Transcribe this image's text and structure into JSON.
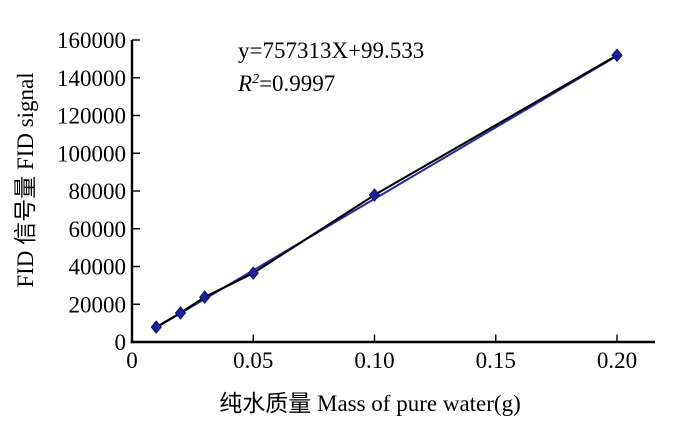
{
  "chart_data": {
    "type": "scatter",
    "title": "",
    "x": [
      0.01,
      0.02,
      0.03,
      0.05,
      0.1,
      0.2
    ],
    "y": [
      7900,
      15400,
      23800,
      36500,
      77900,
      151900
    ],
    "xlabel": "纯水质量  Mass of pure water(g)",
    "ylabel": "FID 信号量  FID signal",
    "xlim": [
      0,
      0.216
    ],
    "ylim": [
      0,
      160000
    ],
    "grid": "off",
    "legend": "none",
    "x_ticks": {
      "values": [
        0,
        0.05,
        0.1,
        0.15,
        0.2
      ],
      "labels": [
        "0",
        "0.05",
        "0.10",
        "0.15",
        "0.20"
      ]
    },
    "y_ticks": {
      "values": [
        0,
        20000,
        40000,
        60000,
        80000,
        100000,
        120000,
        140000,
        160000
      ],
      "labels": [
        "0",
        "20000",
        "40000",
        "60000",
        "80000",
        "100000",
        "120000",
        "140000",
        "160000"
      ]
    },
    "trendline": {
      "slope": 757313,
      "intercept": 99.533,
      "r_squared": 0.9997,
      "x_range": [
        0.0095,
        0.2
      ]
    },
    "annotation": {
      "equation": "y=757313X+99.533",
      "r2_base": "R",
      "r2_sup": "2",
      "r2_rest": "=0.9997"
    },
    "style": {
      "marker": "diamond",
      "marker_color": "#1e1e96",
      "marker_edge_color": "#12127a",
      "data_line_color": "#000000",
      "trend_line_color": "#2b2ba3",
      "axis_color": "#000000",
      "background": "#ffffff"
    }
  }
}
